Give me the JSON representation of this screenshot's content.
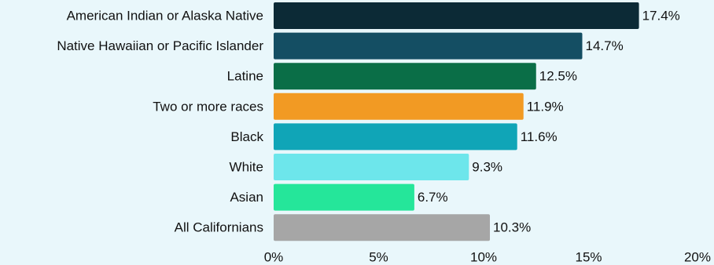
{
  "chart_data": {
    "type": "bar",
    "orientation": "horizontal",
    "categories": [
      "American Indian or Alaska Native",
      "Native Hawaiian or Pacific Islander",
      "Latine",
      "Two or more races",
      "Black",
      "White",
      "Asian",
      "All Californians"
    ],
    "values": [
      17.4,
      14.7,
      12.5,
      11.9,
      11.6,
      9.3,
      6.7,
      10.3
    ],
    "value_labels": [
      "17.4%",
      "14.7%",
      "12.5%",
      "11.9%",
      "11.6%",
      "9.3%",
      "6.7%",
      "10.3%"
    ],
    "colors": [
      "#0c2a36",
      "#144e63",
      "#0a6e47",
      "#f29a23",
      "#10a5b7",
      "#6de6eb",
      "#25e69a",
      "#a6a6a6"
    ],
    "xlim": [
      0,
      20
    ],
    "xticks": [
      0,
      5,
      10,
      15,
      20
    ],
    "xtick_labels": [
      "0%",
      "5%",
      "10%",
      "15%",
      "20%"
    ],
    "grid": false,
    "legend": "none",
    "background": "#e9f7fb"
  }
}
